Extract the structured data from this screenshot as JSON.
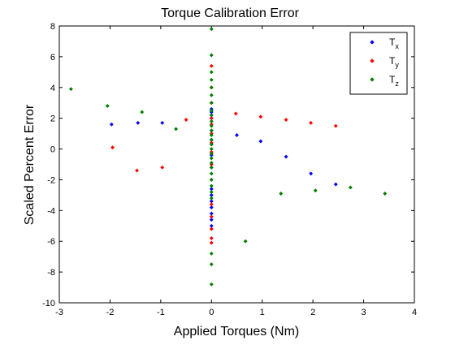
{
  "chart_data": {
    "type": "scatter",
    "title": "Torque Calibration Error",
    "xlabel": "Applied Torques (Nm)",
    "ylabel": "Scaled Percent Error",
    "xlim": [
      -3,
      4
    ],
    "ylim": [
      -10,
      8
    ],
    "xticks": [
      "-3",
      "-2",
      "-1",
      "0",
      "1",
      "2",
      "3",
      "4"
    ],
    "yticks": [
      "-10",
      "-8",
      "-6",
      "-4",
      "-2",
      "0",
      "2",
      "4",
      "6",
      "8"
    ],
    "grid": false,
    "legend_position": "top-right",
    "series": [
      {
        "name": "Tx",
        "legend_main": "T",
        "legend_sub": "x",
        "color": "#0000ff",
        "points": [
          [
            -1.97,
            1.6
          ],
          [
            -1.45,
            1.7
          ],
          [
            -0.97,
            1.7
          ],
          [
            0.5,
            0.9
          ],
          [
            0.97,
            0.5
          ],
          [
            1.47,
            -0.5
          ],
          [
            1.96,
            -1.6
          ],
          [
            2.45,
            -2.3
          ],
          [
            0,
            2.6
          ],
          [
            0,
            2.4
          ],
          [
            0,
            2.2
          ],
          [
            0,
            2.0
          ],
          [
            0,
            1.2
          ],
          [
            0,
            0.6
          ],
          [
            0,
            0.3
          ],
          [
            0,
            -0.4
          ],
          [
            0,
            -1.2
          ],
          [
            0,
            -2.6
          ],
          [
            0,
            -3.0
          ],
          [
            0,
            -3.4
          ],
          [
            0,
            -3.8
          ],
          [
            0,
            -4.2
          ],
          [
            0,
            -4.6
          ],
          [
            0,
            -5.0
          ]
        ]
      },
      {
        "name": "Ty",
        "legend_main": "T",
        "legend_sub": "y",
        "color": "#ff0000",
        "points": [
          [
            -1.95,
            0.1
          ],
          [
            -1.47,
            -1.4
          ],
          [
            -0.97,
            -1.2
          ],
          [
            -0.5,
            1.9
          ],
          [
            0.48,
            2.3
          ],
          [
            0.97,
            2.1
          ],
          [
            1.47,
            1.9
          ],
          [
            1.96,
            1.7
          ],
          [
            2.45,
            1.5
          ],
          [
            0,
            5.4
          ],
          [
            0,
            4.0
          ],
          [
            0,
            3.0
          ],
          [
            0,
            2.0
          ],
          [
            0,
            1.6
          ],
          [
            0,
            1.0
          ],
          [
            0,
            0.4
          ],
          [
            0,
            -0.2
          ],
          [
            0,
            -1.0
          ],
          [
            0,
            -2.0
          ],
          [
            0,
            -3.6
          ],
          [
            0,
            -4.4
          ],
          [
            0,
            -5.2
          ],
          [
            0,
            -5.8
          ],
          [
            0,
            -6.1
          ]
        ]
      },
      {
        "name": "Tz",
        "legend_main": "T",
        "legend_sub": "z",
        "color": "#007f00",
        "points": [
          [
            -2.77,
            3.9
          ],
          [
            -2.05,
            2.8
          ],
          [
            -1.37,
            2.4
          ],
          [
            -0.7,
            1.3
          ],
          [
            0.67,
            -6.0
          ],
          [
            1.37,
            -2.9
          ],
          [
            2.05,
            -2.7
          ],
          [
            2.74,
            -2.5
          ],
          [
            3.42,
            -2.9
          ],
          [
            0,
            7.8
          ],
          [
            0,
            6.1
          ],
          [
            0,
            5.0
          ],
          [
            0,
            4.5
          ],
          [
            0,
            4.0
          ],
          [
            0,
            3.5
          ],
          [
            0,
            3.0
          ],
          [
            0,
            2.5
          ],
          [
            0,
            2.2
          ],
          [
            0,
            1.8
          ],
          [
            0,
            1.5
          ],
          [
            0,
            1.2
          ],
          [
            0,
            0.9
          ],
          [
            0,
            0.6
          ],
          [
            0,
            0.3
          ],
          [
            0,
            0.0
          ],
          [
            0,
            -0.3
          ],
          [
            0,
            -0.6
          ],
          [
            0,
            -0.9
          ],
          [
            0,
            -1.2
          ],
          [
            0,
            -1.6
          ],
          [
            0,
            -2.0
          ],
          [
            0,
            -2.4
          ],
          [
            0,
            -2.8
          ],
          [
            0,
            -3.2
          ],
          [
            0,
            -6.8
          ],
          [
            0,
            -7.5
          ],
          [
            0,
            -8.8
          ]
        ]
      }
    ]
  }
}
